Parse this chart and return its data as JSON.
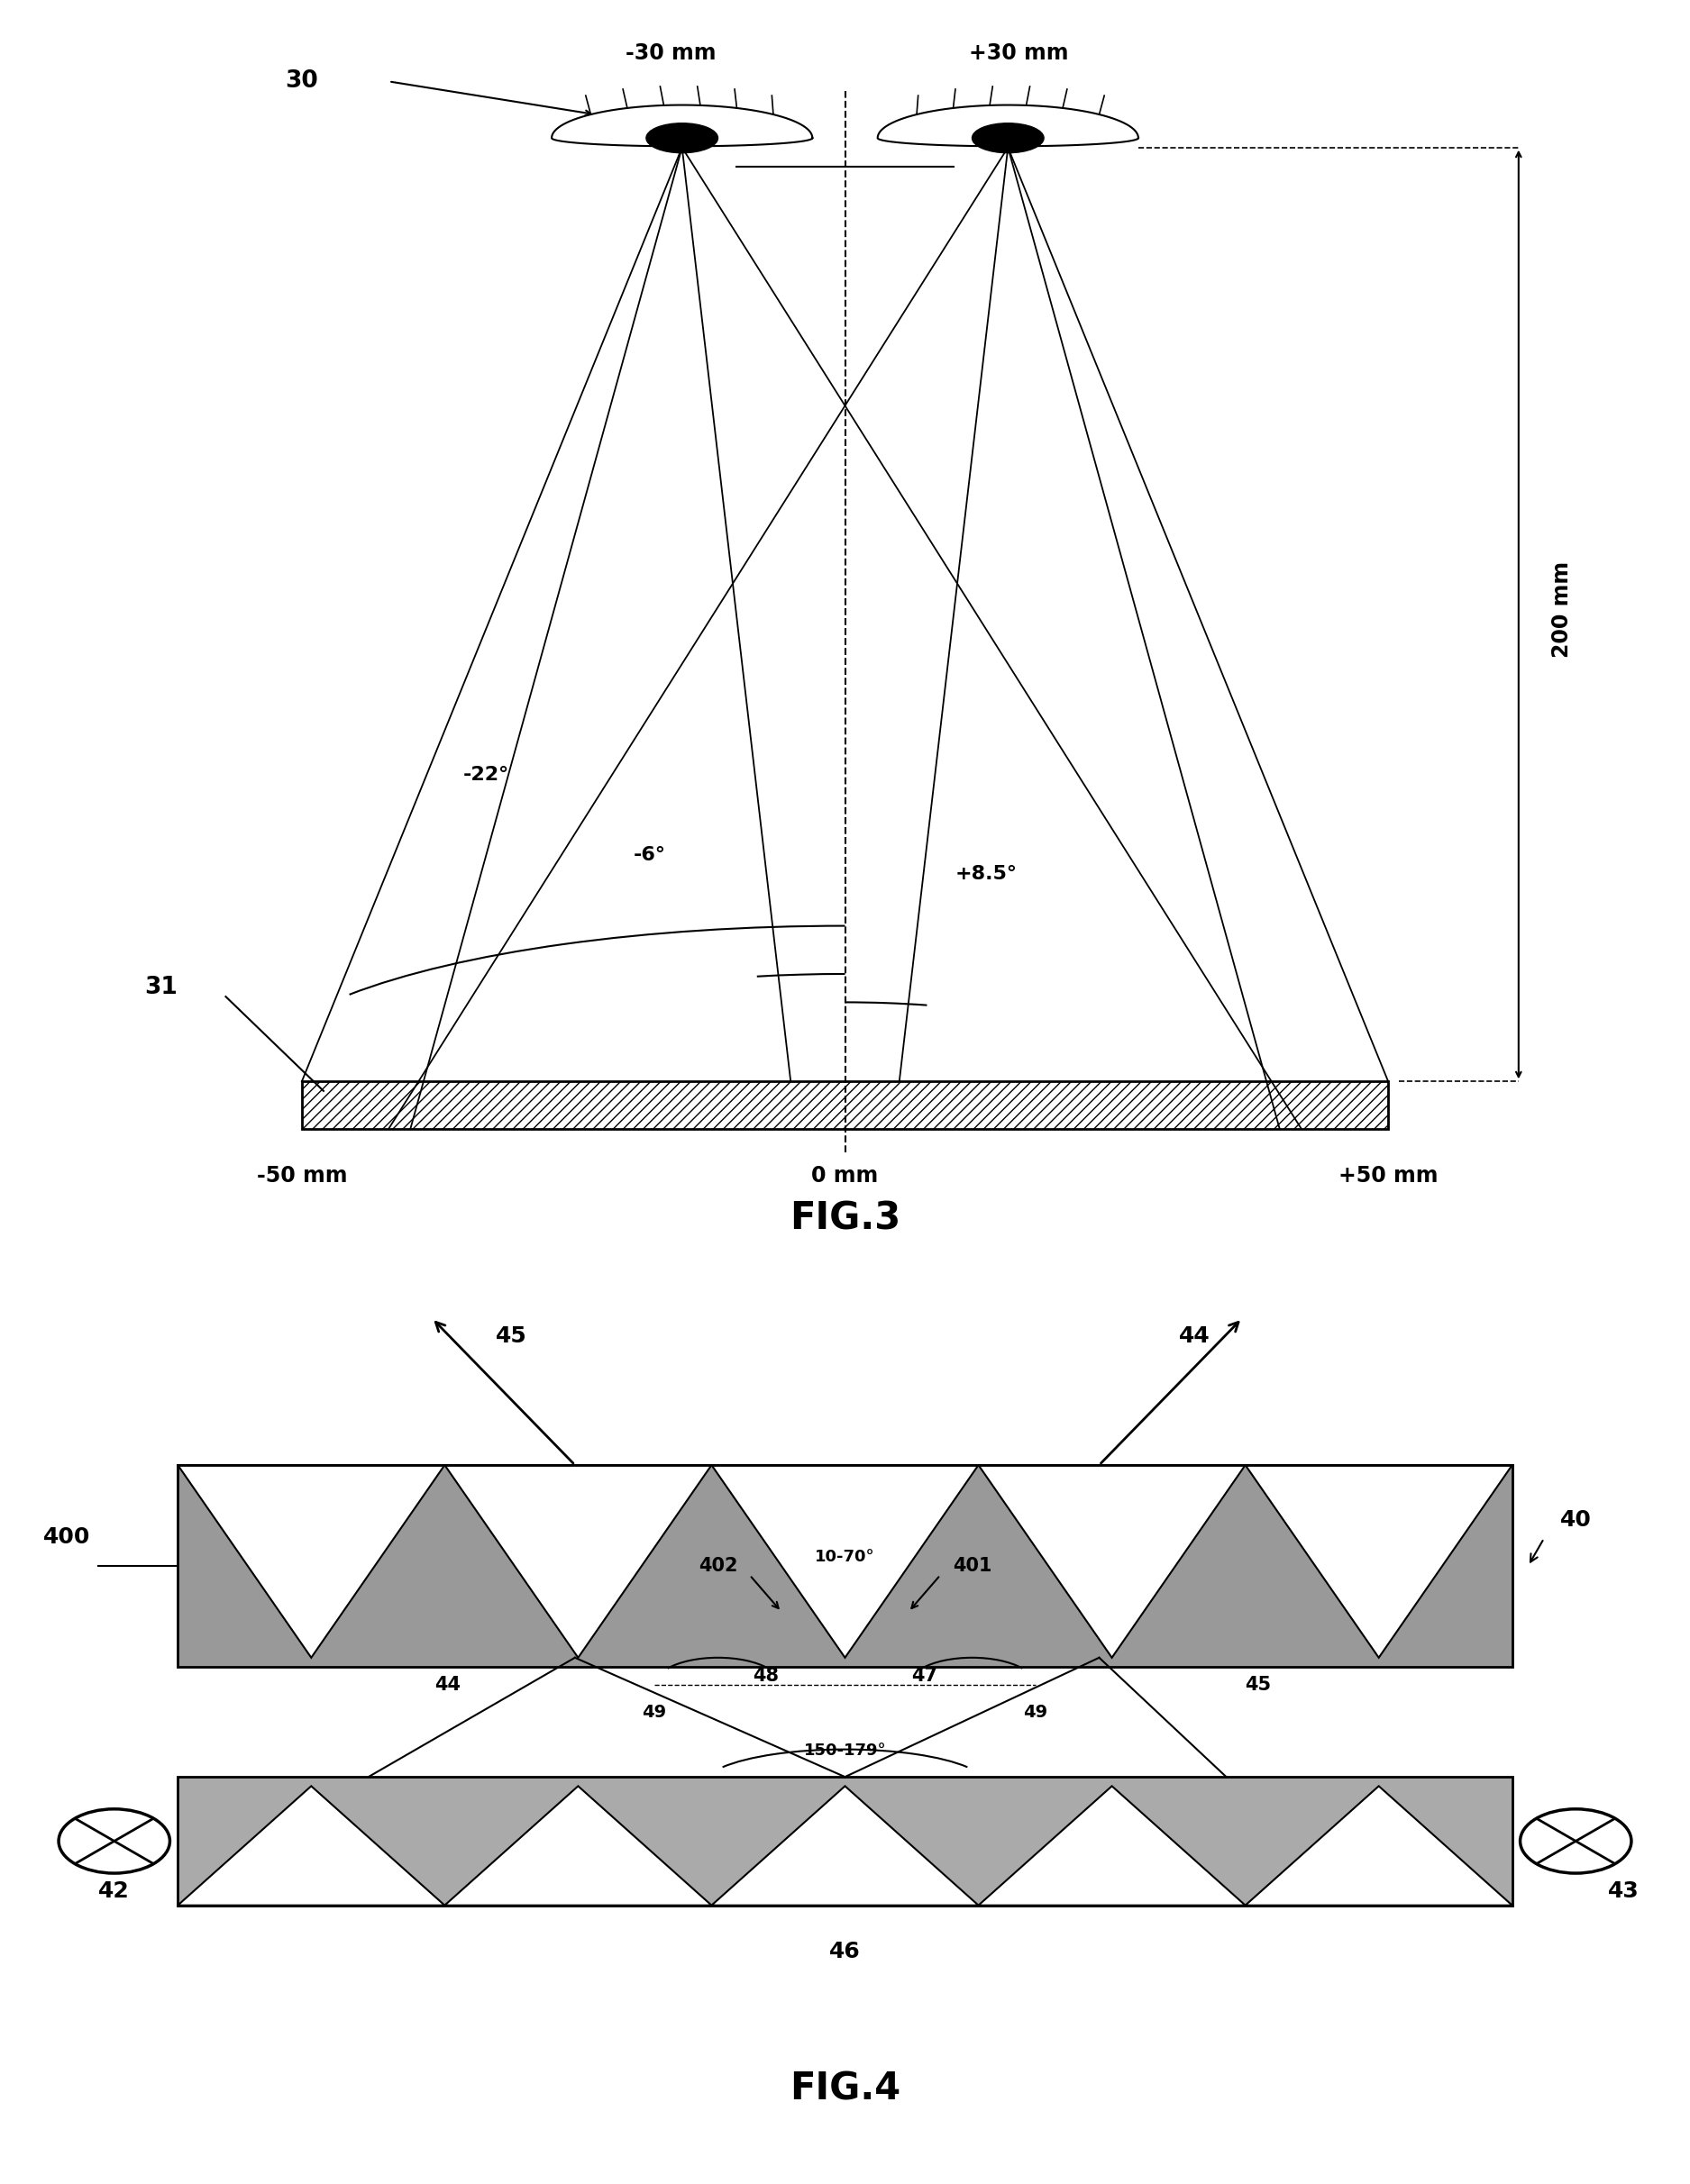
{
  "fig_width": 18.75,
  "fig_height": 24.24,
  "bg_color": "#ffffff",
  "line_color": "#000000",
  "fig3": {
    "title": "FIG.3",
    "label_30": "30",
    "label_31": "31",
    "label_minus30mm": "-30 mm",
    "label_plus30mm": "+30 mm",
    "label_minus50mm": "-50 mm",
    "label_0mm": "0 mm",
    "label_plus50mm": "+50 mm",
    "label_200mm": "200 mm",
    "label_minus6": "-6°",
    "label_minus22": "-22°",
    "label_plus85": "+8.5°"
  },
  "fig4": {
    "title": "FIG.4",
    "label_40": "40",
    "label_42": "42",
    "label_43": "43",
    "label_44": "44",
    "label_45": "45",
    "label_46": "46",
    "label_47": "47",
    "label_48": "48",
    "label_49": "49",
    "label_400": "400",
    "label_401": "401",
    "label_402": "402",
    "label_angle_top": "10-70°",
    "label_angle_bottom": "150-179°"
  }
}
